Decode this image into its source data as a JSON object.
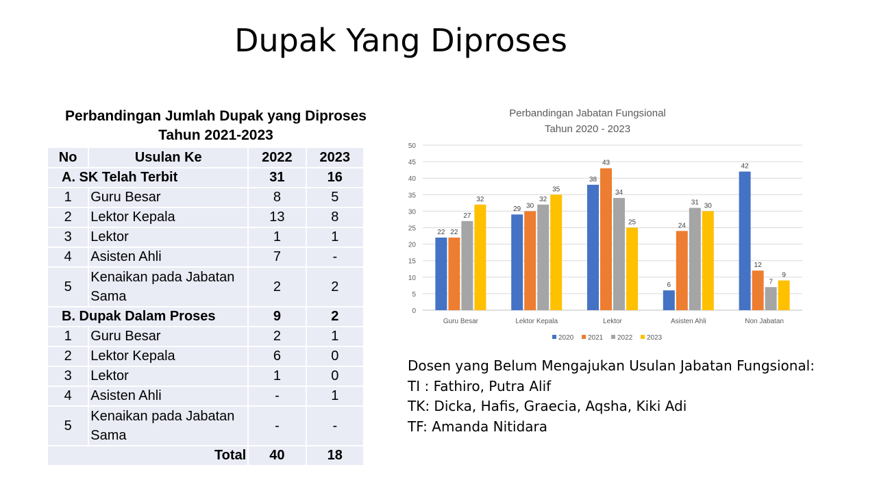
{
  "slide_title": "Dupak Yang Diproses",
  "table": {
    "title_line1": "Perbandingan Jumlah Dupak yang Diproses",
    "title_line2": "Tahun 2021-2023",
    "headers": [
      "No",
      "Usulan Ke",
      "2022",
      "2023"
    ],
    "section_a": {
      "label": "A. SK Telah Terbit",
      "v2022": "31",
      "v2023": "16",
      "rows": [
        {
          "no": "1",
          "label": "Guru Besar",
          "v2022": "8",
          "v2023": "5"
        },
        {
          "no": "2",
          "label": "Lektor Kepala",
          "v2022": "13",
          "v2023": "8"
        },
        {
          "no": "3",
          "label": "Lektor",
          "v2022": "1",
          "v2023": "1"
        },
        {
          "no": "4",
          "label": "Asisten Ahli",
          "v2022": "7",
          "v2023": "-"
        },
        {
          "no": "5",
          "label": "Kenaikan pada Jabatan Sama",
          "v2022": "2",
          "v2023": "2"
        }
      ]
    },
    "section_b": {
      "label": "B. Dupak Dalam Proses",
      "v2022": "9",
      "v2023": "2",
      "rows": [
        {
          "no": "1",
          "label": "Guru Besar",
          "v2022": "2",
          "v2023": "1"
        },
        {
          "no": "2",
          "label": "Lektor Kepala",
          "v2022": "6",
          "v2023": "0"
        },
        {
          "no": "3",
          "label": "Lektor",
          "v2022": "1",
          "v2023": "0"
        },
        {
          "no": "4",
          "label": "Asisten Ahli",
          "v2022": "-",
          "v2023": "1"
        },
        {
          "no": "5",
          "label": "Kenaikan pada Jabatan Sama",
          "v2022": "-",
          "v2023": "-"
        }
      ]
    },
    "total": {
      "label": "Total",
      "v2022": "40",
      "v2023": "18"
    }
  },
  "chart_data": {
    "type": "bar",
    "title": "Perbandingan Jabatan Fungsional",
    "subtitle": "Tahun 2020 - 2023",
    "categories": [
      "Guru Besar",
      "Lektor Kepala",
      "Lektor",
      "Asisten Ahli",
      "Non Jabatan"
    ],
    "series": [
      {
        "name": "2020",
        "color": "#4472c4",
        "values": [
          22,
          29,
          38,
          6,
          42
        ]
      },
      {
        "name": "2021",
        "color": "#ed7d31",
        "values": [
          22,
          30,
          43,
          24,
          12
        ]
      },
      {
        "name": "2022",
        "color": "#a5a5a5",
        "values": [
          27,
          32,
          34,
          31,
          7
        ]
      },
      {
        "name": "2023",
        "color": "#ffc000",
        "values": [
          32,
          35,
          25,
          30,
          9
        ]
      }
    ],
    "ylim": [
      0,
      50
    ],
    "yticks": [
      0,
      5,
      10,
      15,
      20,
      25,
      30,
      35,
      40,
      45,
      50
    ],
    "grid": true,
    "legend": "bottom",
    "data_labels": true
  },
  "notes": {
    "line1": "Dosen yang Belum Mengajukan Usulan Jabatan Fungsional:",
    "line2": "TI : Fathiro, Putra Alif",
    "line3": "TK: Dicka, Hafis, Graecia, Aqsha, Kiki Adi",
    "line4": "TF: Amanda Nitidara"
  }
}
